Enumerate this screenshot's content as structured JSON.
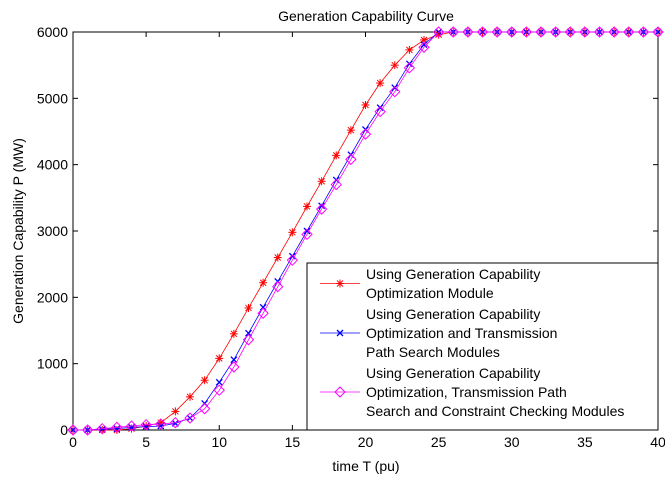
{
  "chart_data": {
    "type": "line",
    "title": "Generation Capability Curve",
    "xlabel": "time T (pu)",
    "ylabel": "Generation Capability P (MW)",
    "xlim": [
      0,
      40
    ],
    "ylim": [
      0,
      6000
    ],
    "xticks": [
      0,
      5,
      10,
      15,
      20,
      25,
      30,
      35,
      40
    ],
    "yticks": [
      0,
      1000,
      2000,
      3000,
      4000,
      5000,
      6000
    ],
    "grid": false,
    "legend_position": "bottom-right",
    "series": [
      {
        "name": "Using Generation Capability Optimization Module",
        "legend_lines": [
          "Using Generation Capability",
          "Optimization Module"
        ],
        "color": "#ff0000",
        "marker": "asterisk",
        "x": [
          0,
          1,
          2,
          3,
          4,
          5,
          6,
          7,
          8,
          9,
          10,
          11,
          12,
          13,
          14,
          15,
          16,
          17,
          18,
          19,
          20,
          21,
          22,
          23,
          24,
          25,
          26,
          27,
          28,
          29,
          30,
          31,
          32,
          33,
          34,
          35,
          36,
          37,
          38,
          39,
          40
        ],
        "values": [
          0,
          0,
          0,
          0,
          20,
          60,
          110,
          280,
          500,
          750,
          1080,
          1450,
          1840,
          2220,
          2600,
          2980,
          3370,
          3750,
          4140,
          4520,
          4900,
          5230,
          5500,
          5730,
          5880,
          5960,
          6000,
          6000,
          6000,
          6000,
          6000,
          6000,
          6000,
          6000,
          6000,
          6000,
          6000,
          6000,
          6000,
          6000,
          6000
        ]
      },
      {
        "name": "Using Generation Capability Optimization and Transmission Path Search Modules",
        "legend_lines": [
          "Using Generation Capability",
          "Optimization and Transmission",
          "Path Search Modules"
        ],
        "color": "#0000ff",
        "marker": "x",
        "x": [
          0,
          1,
          2,
          3,
          4,
          5,
          6,
          7,
          8,
          9,
          10,
          11,
          12,
          13,
          14,
          15,
          16,
          17,
          18,
          19,
          20,
          21,
          22,
          23,
          24,
          25,
          26,
          27,
          28,
          29,
          30,
          31,
          32,
          33,
          34,
          35,
          36,
          37,
          38,
          39,
          40
        ],
        "values": [
          0,
          0,
          10,
          20,
          40,
          50,
          60,
          100,
          180,
          400,
          720,
          1060,
          1460,
          1850,
          2240,
          2620,
          3000,
          3380,
          3770,
          4150,
          4530,
          4860,
          5160,
          5520,
          5810,
          6000,
          6000,
          6000,
          6000,
          6000,
          6000,
          6000,
          6000,
          6000,
          6000,
          6000,
          6000,
          6000,
          6000,
          6000,
          6000
        ]
      },
      {
        "name": "Using Generation Capability Optimization, Transmission Path Search and Constraint Checking Modules",
        "legend_lines": [
          "Using Generation Capability",
          "Optimization, Transmission Path",
          "Search and Constraint Checking Modules"
        ],
        "color": "#ff00ff",
        "marker": "diamond",
        "x": [
          0,
          1,
          2,
          3,
          4,
          5,
          6,
          7,
          8,
          9,
          10,
          11,
          12,
          13,
          14,
          15,
          16,
          17,
          18,
          19,
          20,
          21,
          22,
          23,
          24,
          25,
          26,
          27,
          28,
          29,
          30,
          31,
          32,
          33,
          34,
          35,
          36,
          37,
          38,
          39,
          40
        ],
        "values": [
          0,
          0,
          20,
          40,
          60,
          80,
          90,
          110,
          180,
          320,
          600,
          950,
          1360,
          1760,
          2160,
          2560,
          2950,
          3330,
          3700,
          4080,
          4460,
          4800,
          5100,
          5460,
          5770,
          6000,
          6000,
          6000,
          6000,
          6000,
          6000,
          6000,
          6000,
          6000,
          6000,
          6000,
          6000,
          6000,
          6000,
          6000,
          6000
        ]
      }
    ]
  }
}
